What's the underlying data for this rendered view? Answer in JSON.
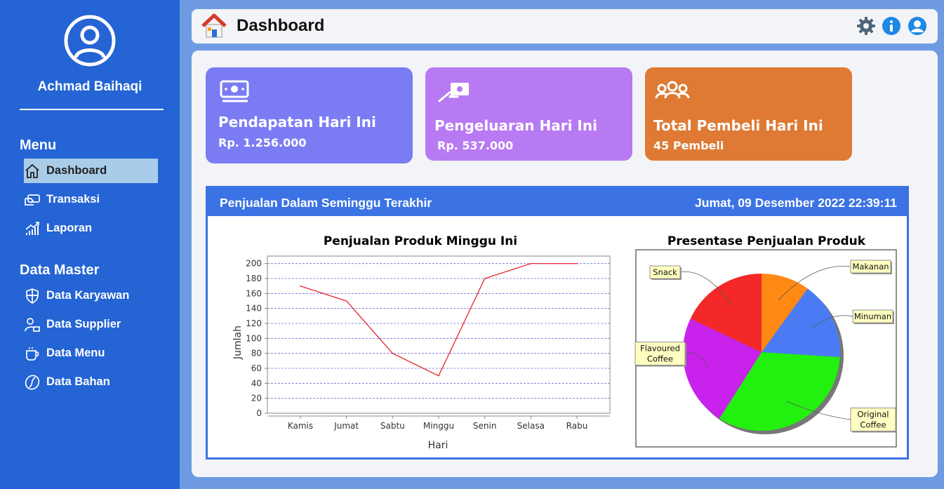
{
  "sidebar": {
    "user_name": "Achmad Baihaqi",
    "menu_title": "Menu",
    "menu_items": [
      {
        "label": "Dashboard",
        "icon": "home-icon",
        "active": true
      },
      {
        "label": "Transaksi",
        "icon": "money-transfer-icon"
      },
      {
        "label": "Laporan",
        "icon": "chart-growth-icon"
      }
    ],
    "master_title": "Data Master",
    "master_items": [
      {
        "label": "Data Karyawan",
        "icon": "shield-icon"
      },
      {
        "label": "Data Supplier",
        "icon": "supplier-icon"
      },
      {
        "label": "Data Menu",
        "icon": "cup-icon"
      },
      {
        "label": "Data Bahan",
        "icon": "coffee-bean-icon"
      }
    ]
  },
  "header": {
    "title": "Dashboard",
    "icons": [
      "settings-gear-icon",
      "info-icon",
      "user-account-icon"
    ]
  },
  "cards": [
    {
      "title": "Pendapatan Hari Ini",
      "value": "Rp. 1.256.000",
      "color": "#7b7cf4",
      "icon": "cash-icon"
    },
    {
      "title": "Pengeluaran Hari Ini",
      "value": "Rp. 537.000",
      "color": "#b87af3",
      "icon": "hand-money-icon"
    },
    {
      "title": "Total Pembeli Hari Ini",
      "value": "45 Pembeli",
      "color": "#de7a33",
      "icon": "people-group-icon"
    }
  ],
  "sales": {
    "title": "Penjualan Dalam Seminggu Terakhir",
    "datetime": "Jumat, 09 Desember 2022 22:39:11"
  },
  "chart_data": [
    {
      "type": "line",
      "title": "Penjualan Produk Minggu Ini",
      "xlabel": "Hari",
      "ylabel": "Jumlah",
      "categories": [
        "Kamis",
        "Jumat",
        "Sabtu",
        "Minggu",
        "Senin",
        "Selasa",
        "Rabu"
      ],
      "values": [
        170,
        150,
        80,
        50,
        180,
        200,
        200
      ],
      "ylim": [
        0,
        210
      ],
      "yticks": [
        0,
        20,
        40,
        60,
        80,
        100,
        120,
        140,
        160,
        180,
        200
      ],
      "grid": true,
      "line_color": "#e8141e",
      "grid_color": "#6b6bd6"
    },
    {
      "type": "pie",
      "title": "Presentase Penjualan Produk",
      "slices": [
        {
          "label": "Makanan",
          "value": 10,
          "color": "#ff8913"
        },
        {
          "label": "Minuman",
          "value": 16,
          "color": "#4a7bf4"
        },
        {
          "label": "Original Coffee",
          "value": 33,
          "color": "#22f00f"
        },
        {
          "label": "Flavoured Coffee",
          "value": 23,
          "color": "#c822ec"
        },
        {
          "label": "Snack",
          "value": 18,
          "color": "#f42828"
        }
      ]
    }
  ]
}
